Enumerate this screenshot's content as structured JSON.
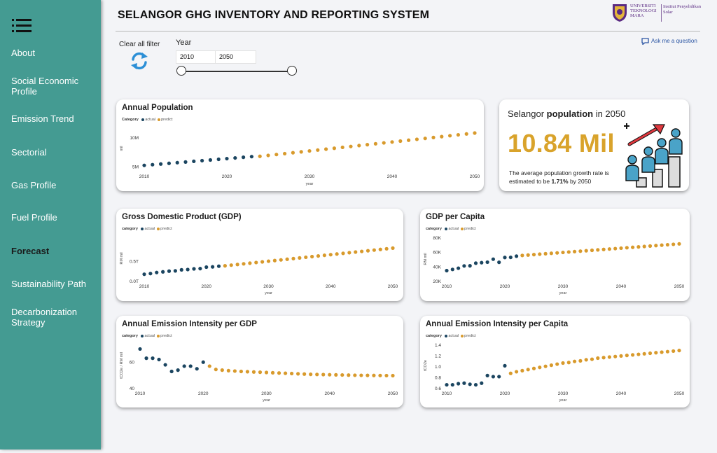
{
  "colors": {
    "sidebar": "#449b92",
    "actual": "#1b4560",
    "predict": "#d89a2c",
    "kpi": "#d9a32b"
  },
  "sidebar": {
    "items": [
      {
        "label": "About",
        "active": false
      },
      {
        "label": "Social Economic Profile",
        "active": false
      },
      {
        "label": "Emission Trend",
        "active": false
      },
      {
        "label": "Sectorial",
        "active": false
      },
      {
        "label": "Gas Profile",
        "active": false
      },
      {
        "label": "Fuel Profile",
        "active": false
      },
      {
        "label": "Forecast",
        "active": true
      },
      {
        "label": "Sustainability Path",
        "active": false
      },
      {
        "label": "Decarbonization Strategy",
        "active": false
      }
    ]
  },
  "header": {
    "title": "SELANGOR GHG INVENTORY AND REPORTING SYSTEM",
    "logo": {
      "uni_text": "UNIVERSITI TEKNOLOGI MARA",
      "institute_text": "Institut Penyelidikan Solar"
    }
  },
  "filters": {
    "clear_label": "Clear all filter",
    "year_label": "Year",
    "year_from": "2010",
    "year_to": "2050",
    "slider_range": [
      2010,
      2050
    ]
  },
  "ask_question": "Ask me a question",
  "kpi": {
    "title_prefix": "Selangor ",
    "title_bold": "population",
    "title_suffix": " in 2050",
    "value": "10.84 Mil",
    "note_prefix": "The average population growth rate is estimated to be ",
    "note_bold": "1.71%",
    "note_suffix": " by 2050"
  },
  "chart_data": [
    {
      "id": "population",
      "type": "scatter",
      "title": "Annual Population",
      "legend_title": "Category",
      "legend": [
        "actual",
        "predict"
      ],
      "ylabel": "mil",
      "xlabel": "year",
      "xlim": [
        2010,
        2050
      ],
      "ylim": [
        4.6,
        11.8
      ],
      "xticks": [
        {
          "v": 2010,
          "t": "2010"
        },
        {
          "v": 2020,
          "t": "2020"
        },
        {
          "v": 2030,
          "t": "2030"
        },
        {
          "v": 2040,
          "t": "2040"
        },
        {
          "v": 2050,
          "t": "2050"
        }
      ],
      "yticks": [
        {
          "v": 5,
          "t": "5M"
        },
        {
          "v": 10,
          "t": "10M"
        }
      ],
      "actual": {
        "start": 2010,
        "end": 2023,
        "from": 5.3,
        "to": 6.8,
        "jitter": [
          0,
          0,
          0,
          0,
          0,
          0,
          0,
          0,
          0,
          0,
          0,
          0,
          0,
          0
        ]
      },
      "predict": {
        "start": 2024,
        "end": 2050,
        "from": 6.85,
        "to": 10.84
      }
    },
    {
      "id": "gdp",
      "type": "scatter",
      "title": "Gross Domestic Product (GDP)",
      "legend_title": "category",
      "legend": [
        "actual",
        "predict"
      ],
      "ylabel": "RM mil",
      "xlabel": "year",
      "xlim": [
        2010,
        2050
      ],
      "ylim": [
        0,
        1.15
      ],
      "xticks": [
        {
          "v": 2010,
          "t": "2010"
        },
        {
          "v": 2020,
          "t": "2020"
        },
        {
          "v": 2030,
          "t": "2030"
        },
        {
          "v": 2040,
          "t": "2040"
        },
        {
          "v": 2050,
          "t": "2050"
        }
      ],
      "yticks": [
        {
          "v": 0,
          "t": "0.0T"
        },
        {
          "v": 0.5,
          "t": "0.5T"
        }
      ],
      "actual": {
        "start": 2010,
        "end": 2022,
        "from": 0.18,
        "to": 0.38,
        "jitter": [
          0,
          0,
          0.01,
          0.01,
          0.01,
          0,
          0.01,
          0,
          0,
          -0.01,
          0.01,
          0,
          0
        ]
      },
      "predict": {
        "start": 2023,
        "end": 2050,
        "from": 0.39,
        "to": 0.83
      }
    },
    {
      "id": "gdp_capita",
      "type": "scatter",
      "title": "GDP per Capita",
      "legend_title": "category",
      "legend": [
        "actual",
        "predict"
      ],
      "ylabel": "RM mil",
      "xlabel": "year",
      "xlim": [
        2010,
        2050
      ],
      "ylim": [
        20000,
        82000
      ],
      "xticks": [
        {
          "v": 2010,
          "t": "2010"
        },
        {
          "v": 2020,
          "t": "2020"
        },
        {
          "v": 2030,
          "t": "2030"
        },
        {
          "v": 2040,
          "t": "2040"
        },
        {
          "v": 2050,
          "t": "2050"
        }
      ],
      "yticks": [
        {
          "v": 20000,
          "t": "20K"
        },
        {
          "v": 40000,
          "t": "40K"
        },
        {
          "v": 60000,
          "t": "60K"
        },
        {
          "v": 80000,
          "t": "80K"
        }
      ],
      "actual": {
        "start": 2010,
        "end": 2022,
        "from": 35000,
        "to": 55000,
        "jitter": [
          0,
          0,
          0,
          1500,
          0,
          2000,
          1000,
          0,
          2500,
          -3500,
          1500,
          0,
          0
        ]
      },
      "predict": {
        "start": 2023,
        "end": 2050,
        "from": 56000,
        "to": 72000
      }
    },
    {
      "id": "intensity_gdp",
      "type": "scatter",
      "title": "Annual Emission Intensity per GDP",
      "legend_title": "category",
      "legend": [
        "actual",
        "predict"
      ],
      "ylabel": "tCO2e / RM mil",
      "xlabel": "year",
      "xlim": [
        2010,
        2050
      ],
      "ylim": [
        40,
        75
      ],
      "xticks": [
        {
          "v": 2010,
          "t": "2010"
        },
        {
          "v": 2020,
          "t": "2020"
        },
        {
          "v": 2030,
          "t": "2030"
        },
        {
          "v": 2040,
          "t": "2040"
        },
        {
          "v": 2050,
          "t": "2050"
        }
      ],
      "yticks": [
        {
          "v": 40,
          "t": "40"
        },
        {
          "v": 60,
          "t": "60"
        }
      ],
      "actual": {
        "points": [
          [
            2010,
            70
          ],
          [
            2011,
            63
          ],
          [
            2012,
            63
          ],
          [
            2013,
            62
          ],
          [
            2014,
            58
          ],
          [
            2015,
            53
          ],
          [
            2016,
            54
          ],
          [
            2017,
            57
          ],
          [
            2018,
            57
          ],
          [
            2019,
            55
          ],
          [
            2020,
            60
          ]
        ]
      },
      "predict": {
        "points": [
          [
            2021,
            57
          ],
          [
            2022,
            54.5
          ],
          [
            2023,
            54
          ],
          [
            2024,
            53.6
          ],
          [
            2025,
            53.3
          ],
          [
            2026,
            53
          ],
          [
            2027,
            52.8
          ],
          [
            2028,
            52.6
          ],
          [
            2029,
            52.4
          ],
          [
            2030,
            52.2
          ],
          [
            2031,
            52
          ],
          [
            2032,
            51.8
          ],
          [
            2033,
            51.6
          ],
          [
            2034,
            51.4
          ],
          [
            2035,
            51.2
          ],
          [
            2036,
            51
          ],
          [
            2037,
            50.8
          ],
          [
            2038,
            50.7
          ],
          [
            2039,
            50.6
          ],
          [
            2040,
            50.5
          ],
          [
            2041,
            50.4
          ],
          [
            2042,
            50.3
          ],
          [
            2043,
            50.2
          ],
          [
            2044,
            50.1
          ],
          [
            2045,
            50.05
          ],
          [
            2046,
            50
          ],
          [
            2047,
            49.95
          ],
          [
            2048,
            49.9
          ],
          [
            2049,
            49.85
          ],
          [
            2050,
            49.8
          ]
        ]
      }
    },
    {
      "id": "intensity_capita",
      "type": "scatter",
      "title": "Annual Emission Intensity per Capita",
      "legend_title": "category",
      "legend": [
        "actual",
        "predict"
      ],
      "ylabel": "tCO2e",
      "xlabel": "year",
      "xlim": [
        2010,
        2050
      ],
      "ylim": [
        0.6,
        1.45
      ],
      "xticks": [
        {
          "v": 2010,
          "t": "2010"
        },
        {
          "v": 2020,
          "t": "2020"
        },
        {
          "v": 2030,
          "t": "2030"
        },
        {
          "v": 2040,
          "t": "2040"
        },
        {
          "v": 2050,
          "t": "2050"
        }
      ],
      "yticks": [
        {
          "v": 0.6,
          "t": "0.6"
        },
        {
          "v": 0.8,
          "t": "0.8"
        },
        {
          "v": 1.0,
          "t": "1.0"
        },
        {
          "v": 1.2,
          "t": "1.2"
        },
        {
          "v": 1.4,
          "t": "1.4"
        }
      ],
      "actual": {
        "points": [
          [
            2010,
            0.67
          ],
          [
            2011,
            0.67
          ],
          [
            2012,
            0.69
          ],
          [
            2013,
            0.7
          ],
          [
            2014,
            0.68
          ],
          [
            2015,
            0.67
          ],
          [
            2016,
            0.7
          ],
          [
            2017,
            0.84
          ],
          [
            2018,
            0.82
          ],
          [
            2019,
            0.82
          ],
          [
            2020,
            1.02
          ]
        ]
      },
      "predict": {
        "points": [
          [
            2021,
            0.88
          ],
          [
            2022,
            0.91
          ],
          [
            2023,
            0.93
          ],
          [
            2024,
            0.95
          ],
          [
            2025,
            0.97
          ],
          [
            2026,
            0.99
          ],
          [
            2027,
            1.01
          ],
          [
            2028,
            1.03
          ],
          [
            2029,
            1.05
          ],
          [
            2030,
            1.07
          ],
          [
            2031,
            1.08
          ],
          [
            2032,
            1.1
          ],
          [
            2033,
            1.11
          ],
          [
            2034,
            1.13
          ],
          [
            2035,
            1.14
          ],
          [
            2036,
            1.16
          ],
          [
            2037,
            1.17
          ],
          [
            2038,
            1.18
          ],
          [
            2039,
            1.19
          ],
          [
            2040,
            1.2
          ],
          [
            2041,
            1.21
          ],
          [
            2042,
            1.22
          ],
          [
            2043,
            1.23
          ],
          [
            2044,
            1.24
          ],
          [
            2045,
            1.25
          ],
          [
            2046,
            1.26
          ],
          [
            2047,
            1.27
          ],
          [
            2048,
            1.28
          ],
          [
            2049,
            1.29
          ],
          [
            2050,
            1.3
          ]
        ]
      }
    }
  ]
}
